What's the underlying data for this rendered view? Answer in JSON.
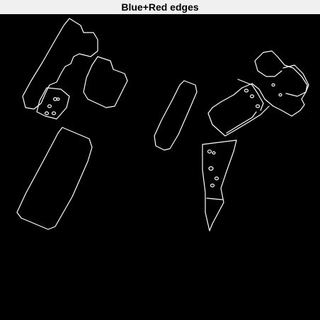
{
  "figure": {
    "title": "Blue+Red edges",
    "background_color": "#000000",
    "edge_color": "#ffffff",
    "titlebar_color": "#f0f0f0"
  }
}
